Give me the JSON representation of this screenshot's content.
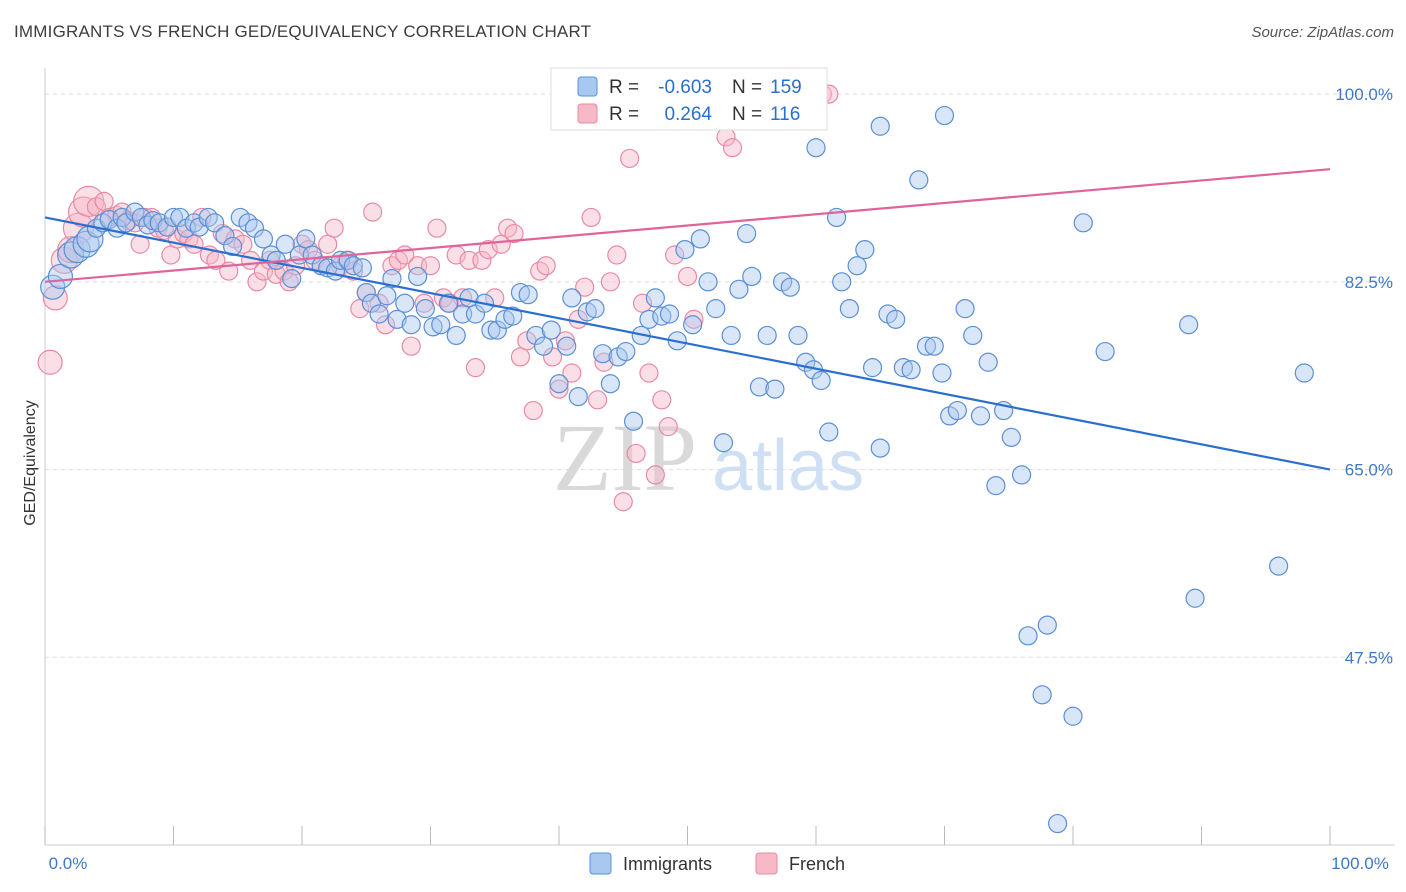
{
  "header": {
    "title": "IMMIGRANTS VS FRENCH GED/EQUIVALENCY CORRELATION CHART",
    "source": "Source: ZipAtlas.com"
  },
  "watermark": {
    "zip": "ZIP",
    "atlas": "atlas"
  },
  "colors": {
    "immigrants_fill": "#a8c8f0",
    "immigrants_stroke": "#5b8fd6",
    "immigrants_line": "#2a6fcf",
    "french_fill": "#f7b8c8",
    "french_stroke": "#e88aa6",
    "french_line": "#e0649a",
    "tick_label": "#3f78c8",
    "grid": "#dddddd"
  },
  "legend": {
    "rows": [
      {
        "r_label": "R =",
        "r_value": "-0.603",
        "n_label": "N =",
        "n_value": "159"
      },
      {
        "r_label": "R =",
        "r_value": "0.264",
        "n_label": "N =",
        "n_value": "116"
      }
    ]
  },
  "chart_data": {
    "type": "scatter",
    "title": "IMMIGRANTS VS FRENCH GED/EQUIVALENCY CORRELATION CHART",
    "ylabel": "GED/Equivalency",
    "xlabel": "",
    "xlim": [
      0,
      100
    ],
    "ylim": [
      30,
      101.5
    ],
    "x_tick_labels": [
      "0.0%",
      "100.0%"
    ],
    "y_ticks": [
      {
        "value": 100.0,
        "label": "100.0%"
      },
      {
        "value": 82.5,
        "label": "82.5%"
      },
      {
        "value": 65.0,
        "label": "65.0%"
      },
      {
        "value": 47.5,
        "label": "47.5%"
      }
    ],
    "grid": "horizontal dashed",
    "legend_placement": "top-center",
    "series": [
      {
        "name": "Immigrants",
        "R": -0.603,
        "N": 159,
        "trend": {
          "x0": 0,
          "y0": 88.5,
          "x1": 100,
          "y1": 65.0
        },
        "points": [
          [
            0.6,
            82
          ],
          [
            1.2,
            83
          ],
          [
            2,
            85
          ],
          [
            2.5,
            85.5
          ],
          [
            3.2,
            86
          ],
          [
            3.5,
            86.5
          ],
          [
            4,
            87.5
          ],
          [
            4.5,
            88
          ],
          [
            5,
            88.3
          ],
          [
            5.6,
            87.5
          ],
          [
            6,
            88.5
          ],
          [
            6.3,
            88
          ],
          [
            7,
            89
          ],
          [
            7.5,
            88.5
          ],
          [
            8,
            87.8
          ],
          [
            8.4,
            88.2
          ],
          [
            8.9,
            88
          ],
          [
            9.5,
            87.6
          ],
          [
            10,
            88.5
          ],
          [
            10.5,
            88.5
          ],
          [
            11,
            87.5
          ],
          [
            11.6,
            88
          ],
          [
            12,
            87.6
          ],
          [
            12.7,
            88.5
          ],
          [
            13.2,
            88
          ],
          [
            14,
            86.8
          ],
          [
            14.6,
            85.8
          ],
          [
            15.2,
            88.5
          ],
          [
            15.8,
            88
          ],
          [
            16.3,
            87.5
          ],
          [
            17,
            86.5
          ],
          [
            17.6,
            85
          ],
          [
            18,
            84.5
          ],
          [
            18.7,
            86
          ],
          [
            19.2,
            82.8
          ],
          [
            19.8,
            85
          ],
          [
            20.3,
            86.5
          ],
          [
            20.8,
            85
          ],
          [
            21.5,
            84
          ],
          [
            22,
            83.8
          ],
          [
            22.6,
            83.5
          ],
          [
            23,
            84.5
          ],
          [
            23.6,
            84.5
          ],
          [
            24,
            84
          ],
          [
            24.7,
            83.8
          ],
          [
            25,
            81.5
          ],
          [
            25.4,
            80.5
          ],
          [
            26,
            79.5
          ],
          [
            26.6,
            81.2
          ],
          [
            27,
            82.8
          ],
          [
            27.4,
            79
          ],
          [
            28,
            80.5
          ],
          [
            28.5,
            78.5
          ],
          [
            29,
            83
          ],
          [
            29.6,
            80
          ],
          [
            30.2,
            78.3
          ],
          [
            30.8,
            78.5
          ],
          [
            31.4,
            80.5
          ],
          [
            32,
            77.5
          ],
          [
            32.5,
            79.5
          ],
          [
            33,
            81
          ],
          [
            33.5,
            79.5
          ],
          [
            34.2,
            80.5
          ],
          [
            34.7,
            78
          ],
          [
            35.2,
            78
          ],
          [
            35.8,
            79
          ],
          [
            36.4,
            79.3
          ],
          [
            37,
            81.5
          ],
          [
            37.6,
            81.3
          ],
          [
            38.2,
            77.5
          ],
          [
            38.8,
            76.5
          ],
          [
            39.4,
            78
          ],
          [
            40,
            73
          ],
          [
            40.6,
            76.5
          ],
          [
            41,
            81
          ],
          [
            41.5,
            71.8
          ],
          [
            42.2,
            79.7
          ],
          [
            42.8,
            80
          ],
          [
            43.4,
            75.8
          ],
          [
            44,
            73
          ],
          [
            44.6,
            75.5
          ],
          [
            45.2,
            76
          ],
          [
            45.8,
            69.5
          ],
          [
            46.4,
            77.5
          ],
          [
            47,
            79
          ],
          [
            47.5,
            81
          ],
          [
            48,
            79.3
          ],
          [
            48.6,
            79.5
          ],
          [
            49.2,
            77
          ],
          [
            49.8,
            85.5
          ],
          [
            50.4,
            78.5
          ],
          [
            51,
            86.5
          ],
          [
            51.6,
            82.5
          ],
          [
            52.2,
            80
          ],
          [
            52.8,
            67.5
          ],
          [
            53.4,
            77.5
          ],
          [
            54,
            81.8
          ],
          [
            54.6,
            87
          ],
          [
            55,
            83
          ],
          [
            55.6,
            72.7
          ],
          [
            56.2,
            77.5
          ],
          [
            56.8,
            72.5
          ],
          [
            57.4,
            82.5
          ],
          [
            58,
            82
          ],
          [
            58.6,
            77.5
          ],
          [
            59.2,
            75
          ],
          [
            59.8,
            74.3
          ],
          [
            60.4,
            73.3
          ],
          [
            61,
            68.5
          ],
          [
            61.6,
            88.5
          ],
          [
            62,
            82.5
          ],
          [
            62.6,
            80
          ],
          [
            63.2,
            84
          ],
          [
            63.8,
            85.5
          ],
          [
            64.4,
            74.5
          ],
          [
            65,
            67
          ],
          [
            65.6,
            79.5
          ],
          [
            66.2,
            79
          ],
          [
            66.8,
            74.5
          ],
          [
            67.4,
            74.3
          ],
          [
            68,
            92
          ],
          [
            68.6,
            76.5
          ],
          [
            69.2,
            76.5
          ],
          [
            69.8,
            74
          ],
          [
            70.4,
            70
          ],
          [
            71,
            70.5
          ],
          [
            71.6,
            80
          ],
          [
            72.2,
            77.5
          ],
          [
            72.8,
            70
          ],
          [
            73.4,
            75
          ],
          [
            74,
            63.5
          ],
          [
            74.6,
            70.5
          ],
          [
            75.2,
            68
          ],
          [
            76,
            64.5
          ],
          [
            76.5,
            49.5
          ],
          [
            77.6,
            44
          ],
          [
            78,
            50.5
          ],
          [
            78.8,
            32
          ],
          [
            80,
            42
          ],
          [
            80.8,
            88
          ],
          [
            82.5,
            76
          ],
          [
            89,
            78.5
          ],
          [
            89.5,
            53
          ],
          [
            96,
            56
          ],
          [
            98,
            74
          ],
          [
            65,
            97
          ],
          [
            60,
            95
          ],
          [
            70,
            98
          ]
        ]
      },
      {
        "name": "French",
        "R": 0.264,
        "N": 116,
        "trend": {
          "x0": 0,
          "y0": 82.5,
          "x1": 100,
          "y1": 93.0
        },
        "points": [
          [
            0.4,
            75
          ],
          [
            0.8,
            81
          ],
          [
            1.5,
            84.5
          ],
          [
            2,
            85.5
          ],
          [
            2.6,
            87.5
          ],
          [
            3,
            89
          ],
          [
            3.4,
            90
          ],
          [
            4,
            89.5
          ],
          [
            4.6,
            90
          ],
          [
            5,
            88.5
          ],
          [
            5.6,
            88.7
          ],
          [
            6,
            89
          ],
          [
            6.5,
            88.2
          ],
          [
            7,
            88
          ],
          [
            7.4,
            86
          ],
          [
            7.8,
            88.5
          ],
          [
            8.3,
            88.5
          ],
          [
            8.8,
            87.5
          ],
          [
            9.3,
            87.3
          ],
          [
            9.8,
            85
          ],
          [
            10.3,
            86.5
          ],
          [
            10.8,
            87
          ],
          [
            11.2,
            86.5
          ],
          [
            11.6,
            86
          ],
          [
            12.2,
            88.5
          ],
          [
            12.8,
            85
          ],
          [
            13.3,
            84.5
          ],
          [
            13.8,
            87
          ],
          [
            14.3,
            83.5
          ],
          [
            14.8,
            86.5
          ],
          [
            15.4,
            86
          ],
          [
            16,
            84.5
          ],
          [
            16.5,
            82.5
          ],
          [
            17,
            83.5
          ],
          [
            17.5,
            84.5
          ],
          [
            18,
            83.2
          ],
          [
            18.6,
            83.5
          ],
          [
            19,
            82.5
          ],
          [
            19.5,
            84
          ],
          [
            20,
            86
          ],
          [
            20.5,
            85.5
          ],
          [
            21,
            84.5
          ],
          [
            21.5,
            84
          ],
          [
            22,
            86
          ],
          [
            22.5,
            87.5
          ],
          [
            23,
            84
          ],
          [
            23.5,
            84.5
          ],
          [
            24,
            83.5
          ],
          [
            24.5,
            80
          ],
          [
            25,
            81.5
          ],
          [
            25.5,
            89
          ],
          [
            26,
            80.5
          ],
          [
            26.5,
            78.5
          ],
          [
            27,
            84
          ],
          [
            27.5,
            84.5
          ],
          [
            28,
            85
          ],
          [
            28.5,
            76.5
          ],
          [
            29,
            84
          ],
          [
            29.5,
            80.5
          ],
          [
            30,
            84
          ],
          [
            30.5,
            87.5
          ],
          [
            31,
            81
          ],
          [
            31.5,
            80.5
          ],
          [
            32,
            85
          ],
          [
            32.5,
            81
          ],
          [
            33,
            84.5
          ],
          [
            33.5,
            74.5
          ],
          [
            34,
            84.5
          ],
          [
            34.5,
            85.5
          ],
          [
            35,
            81
          ],
          [
            35.5,
            86
          ],
          [
            36,
            87.5
          ],
          [
            36.5,
            87
          ],
          [
            37,
            75.5
          ],
          [
            37.5,
            77
          ],
          [
            38,
            70.5
          ],
          [
            38.5,
            83.5
          ],
          [
            39,
            84
          ],
          [
            39.5,
            75.5
          ],
          [
            40,
            72.5
          ],
          [
            40.5,
            77
          ],
          [
            41,
            74
          ],
          [
            41.5,
            79
          ],
          [
            42,
            82
          ],
          [
            42.5,
            88.5
          ],
          [
            43,
            71.5
          ],
          [
            43.5,
            75
          ],
          [
            44,
            82.5
          ],
          [
            44.5,
            85
          ],
          [
            45,
            62
          ],
          [
            45.5,
            94
          ],
          [
            46,
            66.5
          ],
          [
            46.5,
            80.5
          ],
          [
            47,
            74
          ],
          [
            47.5,
            64.5
          ],
          [
            48,
            71.5
          ],
          [
            48.5,
            69
          ],
          [
            49,
            85
          ],
          [
            49.5,
            100
          ],
          [
            50,
            83
          ],
          [
            50.5,
            79
          ],
          [
            51,
            100
          ],
          [
            51.5,
            100
          ],
          [
            52,
            100
          ],
          [
            52.5,
            100
          ],
          [
            53,
            96
          ],
          [
            53.5,
            95
          ],
          [
            54,
            100
          ],
          [
            54.5,
            100
          ],
          [
            55,
            100
          ],
          [
            55.5,
            100
          ],
          [
            56,
            100
          ],
          [
            56.5,
            100
          ],
          [
            57,
            100
          ],
          [
            57.5,
            100
          ],
          [
            58,
            100
          ],
          [
            58.5,
            100
          ],
          [
            59,
            100
          ],
          [
            59.5,
            100
          ],
          [
            60,
            100
          ],
          [
            60.5,
            100
          ],
          [
            61,
            100
          ]
        ]
      }
    ]
  },
  "x_axis": {
    "left_label": "0.0%",
    "right_label": "100.0%"
  },
  "bottom_legend": {
    "immigrants": "Immigrants",
    "french": "French"
  }
}
